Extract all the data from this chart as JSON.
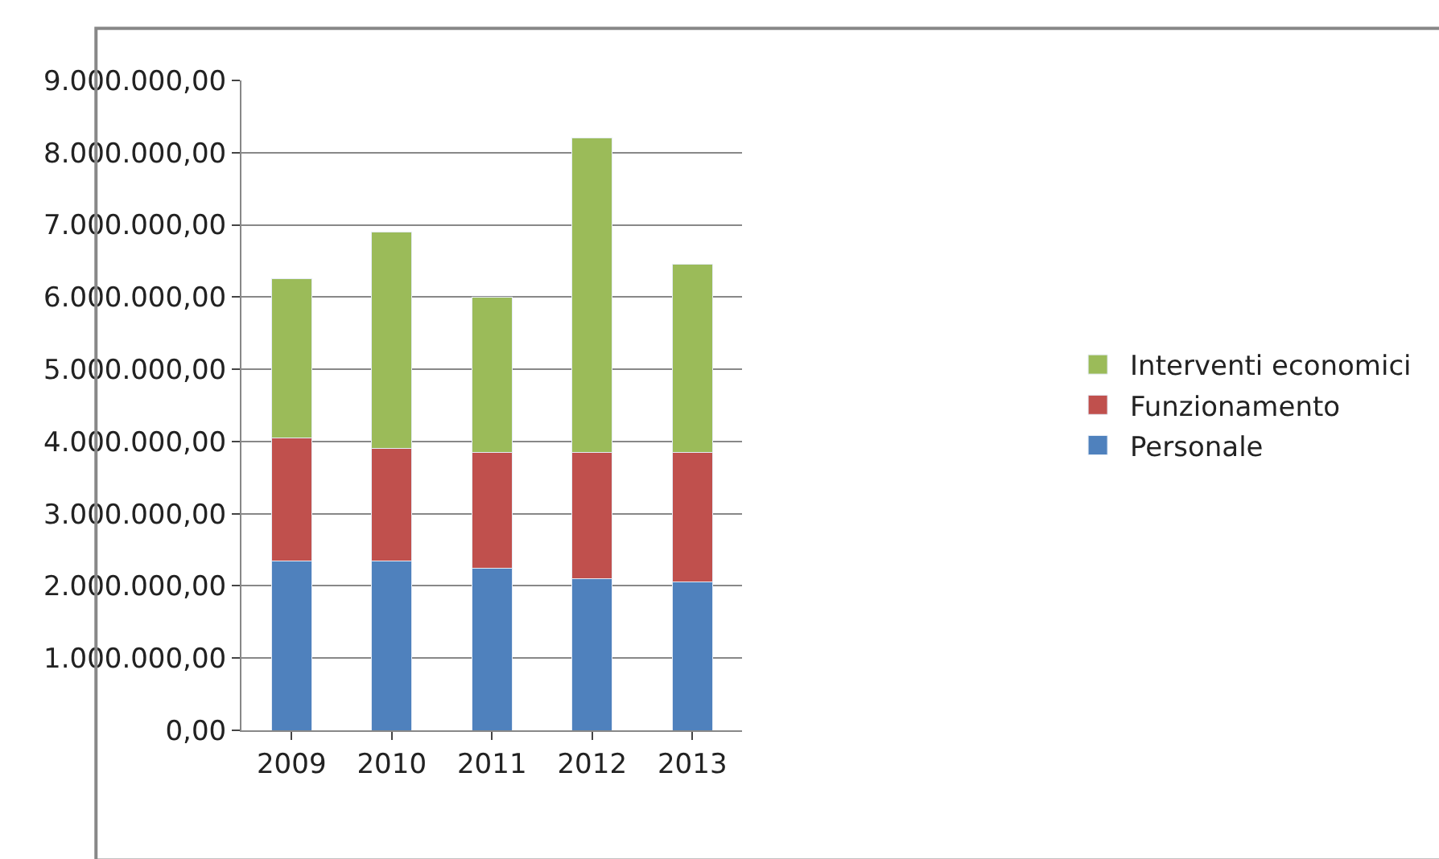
{
  "chart_data": {
    "type": "bar",
    "stacked": true,
    "categories": [
      "2009",
      "2010",
      "2011",
      "2012",
      "2013"
    ],
    "series": [
      {
        "name": "Personale",
        "color": "#4f81bd",
        "values": [
          2350000,
          2350000,
          2250000,
          2100000,
          2050000
        ]
      },
      {
        "name": "Funzionamento",
        "color": "#c0504d",
        "values": [
          1700000,
          1550000,
          1600000,
          1750000,
          1800000
        ]
      },
      {
        "name": "Interventi economici",
        "color": "#9bbb59",
        "values": [
          2200000,
          3000000,
          2150000,
          4350000,
          2600000
        ]
      }
    ],
    "ylim": [
      0,
      9000000
    ],
    "yticks": [
      {
        "value": 0,
        "label": "0,00"
      },
      {
        "value": 1000000,
        "label": "1.000.000,00"
      },
      {
        "value": 2000000,
        "label": "2.000.000,00"
      },
      {
        "value": 3000000,
        "label": "3.000.000,00"
      },
      {
        "value": 4000000,
        "label": "4.000.000,00"
      },
      {
        "value": 5000000,
        "label": "5.000.000,00"
      },
      {
        "value": 6000000,
        "label": "6.000.000,00"
      },
      {
        "value": 7000000,
        "label": "7.000.000,00"
      },
      {
        "value": 8000000,
        "label": "8.000.000,00"
      },
      {
        "value": 9000000,
        "label": "9.000.000,00"
      }
    ],
    "grid": "y",
    "legend": "right"
  }
}
